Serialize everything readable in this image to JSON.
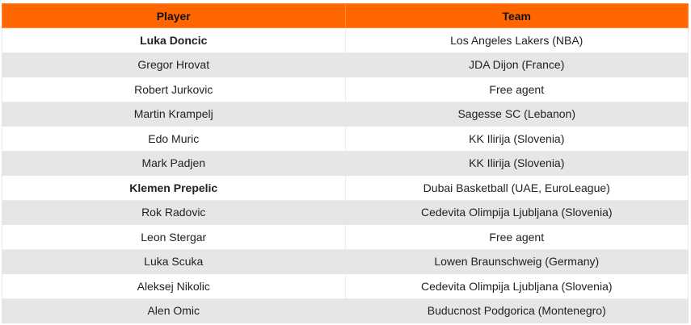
{
  "table": {
    "header": [
      "Player",
      "Team"
    ],
    "rows": [
      {
        "player": "Luka Doncic",
        "team": "Los Angeles Lakers (NBA)",
        "bold": true
      },
      {
        "player": "Gregor Hrovat",
        "team": "JDA Dijon (France)",
        "bold": false
      },
      {
        "player": "Robert Jurkovic",
        "team": "Free agent",
        "bold": false
      },
      {
        "player": "Martin Krampelj",
        "team": "Sagesse SC (Lebanon)",
        "bold": false
      },
      {
        "player": "Edo Muric",
        "team": "KK Ilirija (Slovenia)",
        "bold": false
      },
      {
        "player": "Mark Padjen",
        "team": "KK Ilirija (Slovenia)",
        "bold": false
      },
      {
        "player": "Klemen Prepelic",
        "team": "Dubai Basketball (UAE, EuroLeague)",
        "bold": true
      },
      {
        "player": "Rok Radovic",
        "team": "Cedevita Olimpija Ljubljana (Slovenia)",
        "bold": false
      },
      {
        "player": "Leon Stergar",
        "team": "Free agent",
        "bold": false
      },
      {
        "player": "Luka Scuka",
        "team": "Lowen Braunschweig (Germany)",
        "bold": false
      },
      {
        "player": "Aleksej Nikolic",
        "team": "Cedevita Olimpija Ljubljana (Slovenia)",
        "bold": false
      },
      {
        "player": "Alen Omic",
        "team": "Buducnost Podgorica (Montenegro)",
        "bold": false
      }
    ]
  }
}
